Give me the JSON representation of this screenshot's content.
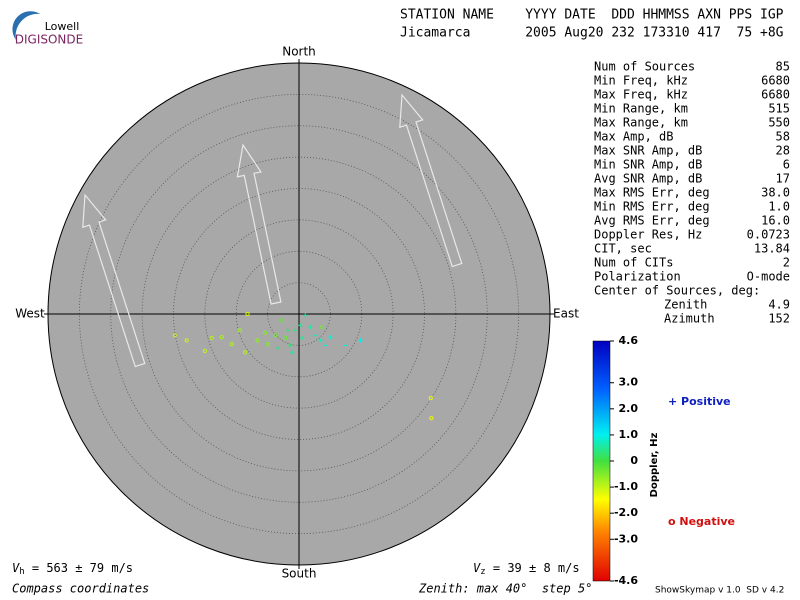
{
  "logo": {
    "top": "Lowell",
    "bottom": "DIGISONDE"
  },
  "header": {
    "labels": "STATION NAME    YYYY DATE  DDD HHMMSS AXN PPS IGP",
    "values": "Jicamarca       2005 Aug20 232 173310 417  75 +8G"
  },
  "compass": {
    "north": "North",
    "south": "South",
    "east": "East",
    "west": "West"
  },
  "stats": {
    "rows": [
      [
        "Num of Sources",
        "85"
      ],
      [
        "Min Freq, kHz",
        "6680"
      ],
      [
        "Max Freq, kHz",
        "6680"
      ],
      [
        "Min Range, km",
        "515"
      ],
      [
        "Max Range, km",
        "550"
      ],
      [
        "Max Amp, dB",
        "58"
      ],
      [
        "Max SNR Amp, dB",
        "28"
      ],
      [
        "Min SNR Amp, dB",
        "6"
      ],
      [
        "Avg SNR Amp, dB",
        "17"
      ],
      [
        "Max RMS Err, deg",
        "38.0"
      ],
      [
        "Min RMS Err, deg",
        "1.0"
      ],
      [
        "Avg RMS Err, deg",
        "16.0"
      ],
      [
        "Doppler Res, Hz",
        "0.0723"
      ],
      [
        "CIT, sec",
        "13.84"
      ],
      [
        "Num of CITs",
        "2"
      ],
      [
        "Polarization",
        "O-mode"
      ]
    ],
    "center_title": "Center of Sources, deg:",
    "center_rows": [
      [
        "Zenith",
        "4.9"
      ],
      [
        "Azimuth",
        "152"
      ]
    ]
  },
  "colorbar": {
    "title": "Doppler, Hz",
    "lim": [
      -4.6,
      4.6
    ],
    "ticks": [
      4.6,
      {
        "value": 3,
        "label": "3.0"
      },
      {
        "value": 2,
        "label": "2.0"
      },
      {
        "value": 1,
        "label": "1.0"
      },
      0,
      {
        "value": -1,
        "label": "-1.0"
      },
      {
        "value": -2,
        "label": "-2.0"
      },
      {
        "value": -3,
        "label": "-3.0"
      },
      -4.6
    ]
  },
  "legend": {
    "positive": "+ Positive",
    "negative": "o Negative"
  },
  "sky": {
    "max_zenith": 40,
    "step": 5,
    "sources": [
      {
        "x": -8.2,
        "y": 0,
        "doppler": -1.2
      },
      {
        "x": -19.8,
        "y": -3.4,
        "doppler": -1.0
      },
      {
        "x": -17.9,
        "y": -4.2,
        "doppler": -1.1
      },
      {
        "x": -15.0,
        "y": -5.9,
        "doppler": -1.0
      },
      {
        "x": -12.3,
        "y": -3.7,
        "doppler": -0.8
      },
      {
        "x": -10.7,
        "y": -4.8,
        "doppler": -0.9
      },
      {
        "x": -8.6,
        "y": -6.1,
        "doppler": -0.9
      },
      {
        "x": -6.6,
        "y": -4.2,
        "doppler": -0.6
      },
      {
        "x": -5.4,
        "y": -3.0,
        "doppler": -0.5
      },
      {
        "x": -3.8,
        "y": -3.4,
        "doppler": -0.4
      },
      {
        "x": -2.7,
        "y": -1.0,
        "doppler": -0.3
      },
      {
        "x": -2.2,
        "y": -3.8,
        "doppler": -0.3
      },
      {
        "x": -1.4,
        "y": -5.0,
        "doppler": 0.3
      },
      {
        "x": -0.6,
        "y": -2.6,
        "doppler": 0.4
      },
      {
        "x": 0.2,
        "y": -1.8,
        "doppler": 0.5
      },
      {
        "x": 1.0,
        "y": -0.2,
        "doppler": 0.6
      },
      {
        "x": 1.8,
        "y": -2.1,
        "doppler": 0.6
      },
      {
        "x": 2.6,
        "y": -3.4,
        "doppler": 0.7
      },
      {
        "x": 3.4,
        "y": -4.2,
        "doppler": 0.7
      },
      {
        "x": 4.2,
        "y": -5.0,
        "doppler": 0.8
      },
      {
        "x": 5.0,
        "y": -3.7,
        "doppler": 0.8
      },
      {
        "x": 7.4,
        "y": -5.0,
        "doppler": 0.9
      },
      {
        "x": 9.8,
        "y": -4.2,
        "doppler": 1.0
      },
      {
        "x": 3.7,
        "y": -2.1,
        "doppler": -0.4
      },
      {
        "x": 21.0,
        "y": -13.4,
        "doppler": -1.3
      },
      {
        "x": 21.1,
        "y": -16.6,
        "doppler": -1.3
      },
      {
        "x": -3.4,
        "y": -5.4,
        "doppler": 0.4
      },
      {
        "x": -9.4,
        "y": -2.6,
        "doppler": -0.7
      },
      {
        "x": -5.0,
        "y": -4.8,
        "doppler": -0.5
      },
      {
        "x": -1.1,
        "y": -6.1,
        "doppler": 0.5
      },
      {
        "x": -13.9,
        "y": -3.8,
        "doppler": -0.9
      },
      {
        "x": 0.5,
        "y": -3.8,
        "doppler": 0.5
      },
      {
        "x": -1.8,
        "y": -2.6,
        "doppler": 0.3
      }
    ]
  },
  "footer": {
    "vh": {
      "v": "V",
      "sub": "h",
      "rest": " = 563 ± 79 m/s"
    },
    "vz": {
      "v": "V",
      "sub": "z",
      "rest": " = 39 ± 8 m/s"
    },
    "coords": "Compass coordinates",
    "zenith": "Zenith: max 40°  step 5°",
    "version": "ShowSkymap v 1.0  SD v 4.2"
  }
}
